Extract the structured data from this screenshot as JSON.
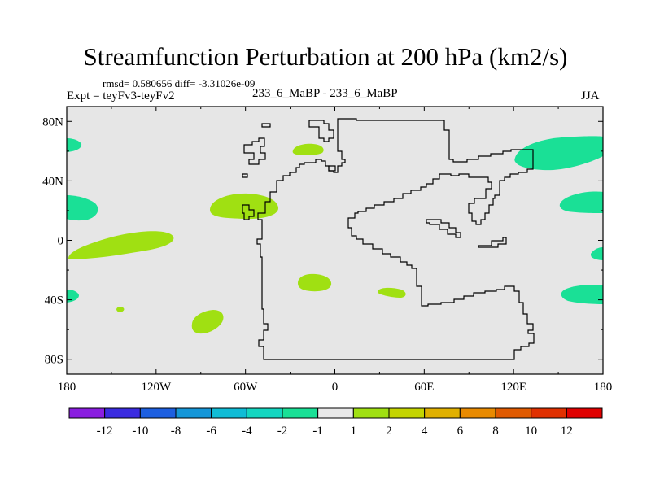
{
  "header": {
    "title": "Streamfunction Perturbation at 200 hPa (km2/s)",
    "stats": "rmsd= 0.580656 diff= -3.31026e-09",
    "expt": "Expt = teyFv3-teyFv2",
    "center_label": "233_6_MaBP - 233_6_MaBP",
    "season": "JJA"
  },
  "chart_data": {
    "type": "contour_map",
    "title": "Streamfunction Perturbation at 200 hPa (km2/s)",
    "x_range": [
      -180,
      180
    ],
    "y_range": [
      -90,
      90
    ],
    "x_ticks": [
      {
        "value": -180,
        "label": "180"
      },
      {
        "value": -120,
        "label": "120W"
      },
      {
        "value": -60,
        "label": "60W"
      },
      {
        "value": 0,
        "label": "0"
      },
      {
        "value": 60,
        "label": "60E"
      },
      {
        "value": 120,
        "label": "120E"
      },
      {
        "value": 180,
        "label": "180"
      }
    ],
    "y_ticks": [
      {
        "value": 80,
        "label": "80N"
      },
      {
        "value": 40,
        "label": "40N"
      },
      {
        "value": 0,
        "label": "0"
      },
      {
        "value": -40,
        "label": "40S"
      },
      {
        "value": -80,
        "label": "80S"
      }
    ],
    "colorbar": {
      "labels": [
        "-12",
        "-10",
        "-8",
        "-6",
        "-4",
        "-2",
        "-1",
        "1",
        "2",
        "4",
        "6",
        "8",
        "10",
        "12"
      ],
      "colors": [
        "#8a1ee0",
        "#3a2be0",
        "#1d5fe0",
        "#1596d8",
        "#10bcd6",
        "#14d6c0",
        "#1ae096",
        "#e8e8e8",
        "#a0e012",
        "#c4d400",
        "#e0b000",
        "#e88a00",
        "#e05a00",
        "#e03000",
        "#e00000"
      ]
    },
    "anomalies": [
      {
        "sign": "positive",
        "level": "1-2",
        "center": [
          -60,
          22
        ]
      },
      {
        "sign": "positive",
        "level": "1-2",
        "center": [
          -145,
          0
        ]
      },
      {
        "sign": "positive",
        "level": "1-2",
        "center": [
          -8,
          60
        ]
      },
      {
        "sign": "positive",
        "level": "1-2",
        "center": [
          -10,
          -30
        ]
      },
      {
        "sign": "positive",
        "level": "1-2",
        "center": [
          38,
          -35
        ]
      },
      {
        "sign": "positive",
        "level": "1-2",
        "center": [
          -87,
          -55
        ]
      },
      {
        "sign": "positive",
        "level": "1-2",
        "center": [
          -144,
          -47
        ]
      },
      {
        "sign": "negative",
        "level": "-1 to -2",
        "center": [
          150,
          60
        ]
      },
      {
        "sign": "negative",
        "level": "-1 to -2",
        "center": [
          -173,
          23
        ]
      },
      {
        "sign": "negative",
        "level": "-1 to -2",
        "center": [
          -177,
          65
        ]
      },
      {
        "sign": "negative",
        "level": "-1 to -2",
        "center": [
          168,
          25
        ]
      },
      {
        "sign": "negative",
        "level": "-1 to -2",
        "center": [
          165,
          -37
        ]
      },
      {
        "sign": "negative",
        "level": "-1 to -2",
        "center": [
          -176,
          -37
        ]
      },
      {
        "sign": "negative",
        "level": "-1 to -2",
        "center": [
          178,
          -10
        ]
      }
    ]
  }
}
